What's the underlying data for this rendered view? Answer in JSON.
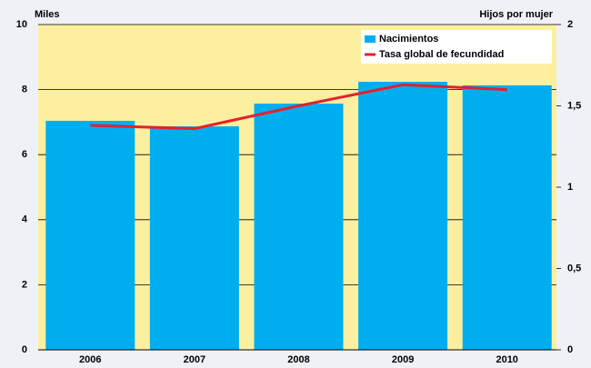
{
  "chart_data": {
    "type": "bar",
    "y_label": "Miles",
    "y2_label": "Hijos por mujer",
    "categories": [
      "2006",
      "2007",
      "2008",
      "2009",
      "2010"
    ],
    "series": [
      {
        "name": "Nacimientos",
        "type": "bar",
        "color": "#00aeef",
        "values": [
          7.04,
          6.87,
          7.57,
          8.24,
          8.13
        ]
      },
      {
        "name": "Tasa global de fecundidad",
        "type": "line",
        "axis": "y2",
        "color": "#e5202e",
        "values": [
          1.38,
          1.36,
          1.5,
          1.63,
          1.6
        ]
      }
    ],
    "ylim": [
      0,
      10
    ],
    "yticks": [
      0,
      2,
      4,
      6,
      8,
      10
    ],
    "y2lim": [
      0,
      2
    ],
    "y2ticks": [
      0,
      {
        "value": 0.5,
        "label": "0,5"
      },
      1,
      {
        "value": 1.5,
        "label": "1,5"
      },
      2
    ],
    "grid": true,
    "legend": "top-right",
    "plot_background": "#fcf0a0"
  }
}
